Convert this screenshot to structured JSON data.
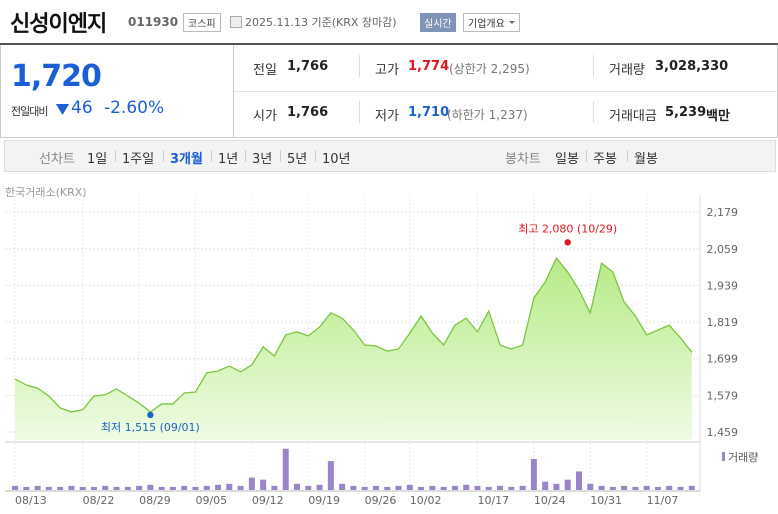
{
  "header": {
    "name": "신성이엔지",
    "code": "011930",
    "market": "코스피",
    "date": "2025.11.13 기준(KRX 장마감)",
    "realtime": "실시간",
    "company_info": "기업개요"
  },
  "quote": {
    "price": "1,720",
    "change_label": "전일대비",
    "change": "46",
    "change_pct": "-2.60%",
    "items": [
      {
        "label": "전일",
        "value": "1,766"
      },
      {
        "label": "고가",
        "value": "1,774",
        "note": "(상한가 2,295)"
      },
      {
        "label": "거래량",
        "value": "3,028,330"
      },
      {
        "label": "시가",
        "value": "1,766"
      },
      {
        "label": "저가",
        "value": "1,710",
        "note": "(하한가 1,237)"
      },
      {
        "label": "거래대금",
        "value": "5,239",
        "unit": "백만"
      }
    ]
  },
  "tabs": {
    "line_label": "선차트",
    "line": [
      "1일",
      "1주일",
      "3개월",
      "1년",
      "3년",
      "5년",
      "10년"
    ],
    "selected": 2,
    "candle_label": "봉차트",
    "candle": [
      "일봉",
      "주봉",
      "월봉"
    ]
  },
  "chart_data": {
    "type": "area",
    "source": "한국거래소(KRX)",
    "categories": [
      "08/13",
      null,
      null,
      null,
      null,
      null,
      "08/22",
      null,
      null,
      null,
      null,
      "08/29",
      null,
      null,
      null,
      null,
      "09/05",
      null,
      null,
      null,
      null,
      "09/12",
      null,
      null,
      null,
      null,
      "09/19",
      null,
      null,
      null,
      null,
      "09/26",
      null,
      null,
      null,
      "10/02",
      null,
      null,
      null,
      null,
      null,
      "10/17",
      null,
      null,
      null,
      null,
      "10/24",
      null,
      null,
      null,
      null,
      "10/31",
      null,
      null,
      null,
      null,
      "11/07",
      null,
      null,
      null,
      null
    ],
    "values": [
      1633,
      1613,
      1603,
      1577,
      1538,
      1525,
      1532,
      1577,
      1581,
      1600,
      1577,
      1554,
      1525,
      1551,
      1551,
      1587,
      1590,
      1653,
      1659,
      1675,
      1656,
      1679,
      1738,
      1708,
      1777,
      1787,
      1774,
      1803,
      1849,
      1832,
      1793,
      1744,
      1741,
      1724,
      1731,
      1783,
      1839,
      1783,
      1744,
      1809,
      1832,
      1787,
      1855,
      1744,
      1731,
      1744,
      1898,
      1950,
      2029,
      1983,
      1924,
      1849,
      2012,
      1983,
      1885,
      1839,
      1777,
      1793,
      1809,
      1767,
      1720
    ],
    "color": "#7cc63f",
    "fill": "#c9f0a6",
    "ylim": [
      1433,
      2235
    ],
    "yticks": [
      {
        "value": 1459,
        "label": "1,459"
      },
      {
        "value": 1579,
        "label": "1,579"
      },
      {
        "value": 1699,
        "label": "1,699"
      },
      {
        "value": 1819,
        "label": "1,819"
      },
      {
        "value": 1939,
        "label": "1,939"
      },
      {
        "value": 2059,
        "label": "2,059"
      },
      {
        "value": 2179,
        "label": "2,179"
      }
    ],
    "grid": true,
    "volume": {
      "name": "거래량",
      "color": "#9b85c9",
      "ylim": [
        0,
        33000000
      ],
      "values": [
        3030000,
        2270000,
        3030000,
        2270000,
        2270000,
        3030000,
        2270000,
        2270000,
        3030000,
        2270000,
        2270000,
        3030000,
        3790000,
        2270000,
        2270000,
        3030000,
        2270000,
        3030000,
        3790000,
        4540000,
        3030000,
        9080000,
        7570000,
        3030000,
        30280000,
        4540000,
        3030000,
        3790000,
        21200000,
        4540000,
        3030000,
        2270000,
        3030000,
        2270000,
        3030000,
        3790000,
        2270000,
        3030000,
        2270000,
        3030000,
        3790000,
        3030000,
        2270000,
        3030000,
        2270000,
        3030000,
        22710000,
        6060000,
        4540000,
        7570000,
        13620000,
        4540000,
        3030000,
        2270000,
        3030000,
        2270000,
        3030000,
        2270000,
        3030000,
        2270000,
        3028330
      ]
    },
    "annotations": [
      {
        "text": "최고 2,080 (10/29)",
        "value": 2080,
        "color": "#e0161c"
      },
      {
        "text": "최저 1,515 (09/01)",
        "value": 1515,
        "color": "#1e63c8"
      }
    ]
  }
}
